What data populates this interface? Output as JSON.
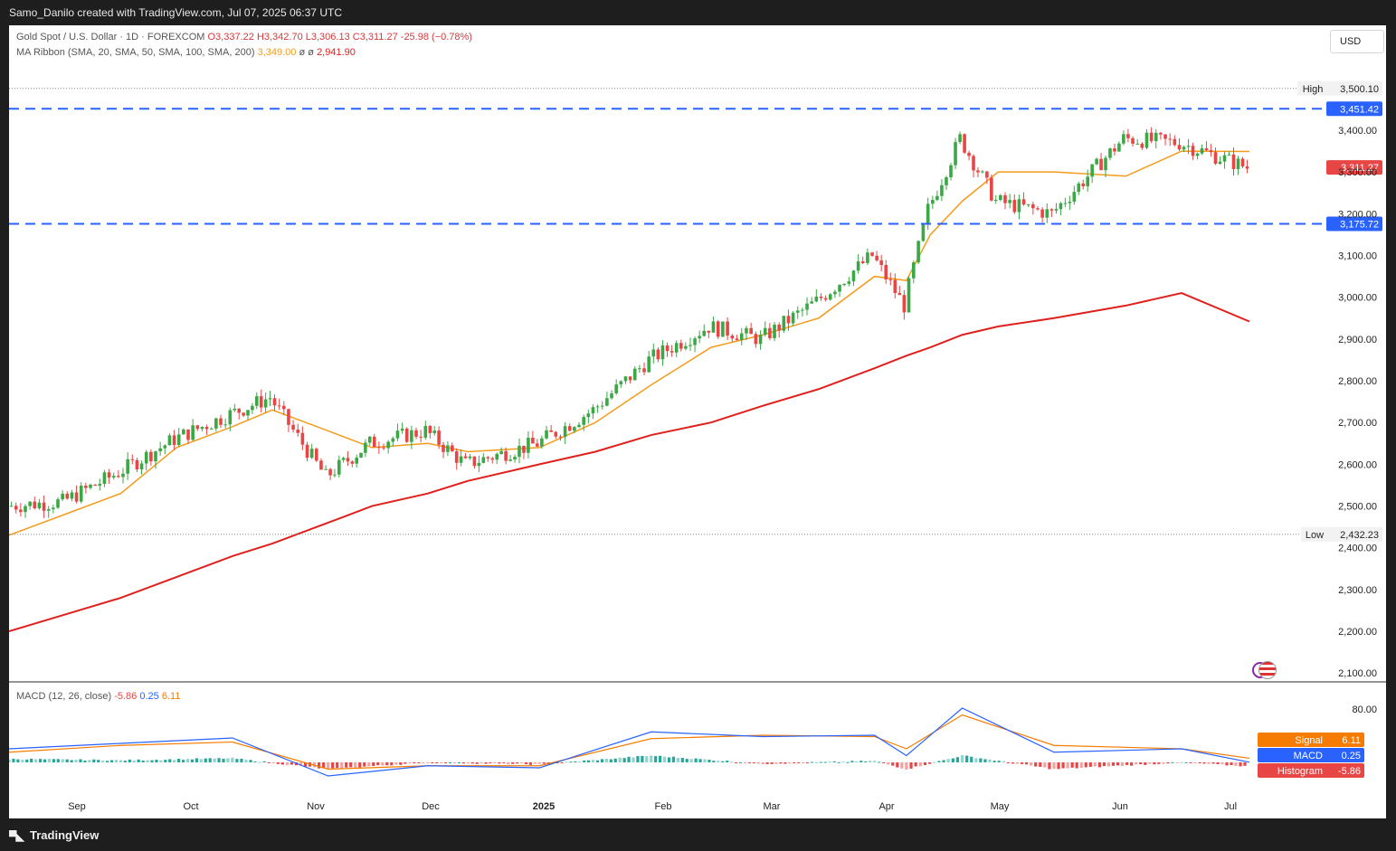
{
  "header": {
    "caption": "Samo_Danilo created with TradingView.com, Jul 07, 2025 06:37 UTC"
  },
  "footer": {
    "brand": "TradingView"
  },
  "currency_button": "USD",
  "legend": {
    "symbol": "Gold Spot / U.S. Dollar · 1D · FOREXCOM",
    "open": "O3,337.22",
    "high": "H3,342.70",
    "low": "L3,306.13",
    "close": "C3,311.27",
    "change": "-25.98 (−0.78%)",
    "ma_label": "MA Ribbon (SMA, 20, SMA, 50, SMA, 100, SMA, 200)",
    "ma_value1": "3,349.00",
    "ma_sep": "ø",
    "ma_sep2": "ø",
    "ma_value2": "2,941.90"
  },
  "macd_legend": {
    "label": "MACD (12, 26, close)",
    "hist": "-5.86",
    "macd": "0.25",
    "signal": "6.11"
  },
  "colors": {
    "up": "#26a69a",
    "up_candle": "#3aa845",
    "down": "#e84545",
    "sma20": "#f59b1c",
    "sma200": "#e0201c",
    "level": "#2962ff",
    "macd": "#2962ff",
    "signal": "#f57c00"
  },
  "price_axis": {
    "ticks": [
      "3,400.00",
      "3,300.00",
      "3,200.00",
      "3,100.00",
      "3,000.00",
      "2,900.00",
      "2,800.00",
      "2,700.00",
      "2,600.00",
      "2,500.00",
      "2,400.00",
      "2,300.00",
      "2,200.00",
      "2,100.00"
    ]
  },
  "macd_axis": {
    "ticks": [
      "80.00"
    ]
  },
  "time_axis": {
    "labels": [
      "Sep",
      "Oct",
      "Nov",
      "Dec",
      "2025",
      "Feb",
      "Mar",
      "Apr",
      "May",
      "Jun",
      "Jul"
    ]
  },
  "markers": {
    "high": {
      "label": "High",
      "value": "3,500.10"
    },
    "low": {
      "label": "Low",
      "value": "2,432.23"
    },
    "resistance": "3,451.42",
    "support": "3,175.72",
    "last": "3,311.27",
    "signal_tag": {
      "label": "Signal",
      "value": "6.11"
    },
    "macd_tag": {
      "label": "MACD",
      "value": "0.25"
    },
    "hist_tag": {
      "label": "Histogram",
      "value": "-5.86"
    }
  },
  "chart_data": [
    {
      "type": "candlestick",
      "title": "Gold Spot / U.S. Dollar · 1D · FOREXCOM",
      "ylim": [
        2080,
        3520
      ],
      "x": [
        "2024-08-26",
        "2024-09-09",
        "2024-09-23",
        "2024-10-07",
        "2024-10-21",
        "2024-10-31",
        "2024-11-14",
        "2024-11-25",
        "2024-12-09",
        "2024-12-19",
        "2025-01-06",
        "2025-01-20",
        "2025-02-03",
        "2025-02-18",
        "2025-03-03",
        "2025-03-17",
        "2025-03-31",
        "2025-04-08",
        "2025-04-14",
        "2025-04-22",
        "2025-05-01",
        "2025-05-15",
        "2025-06-02",
        "2025-06-16",
        "2025-07-03"
      ],
      "close": [
        2500,
        2510,
        2580,
        2660,
        2720,
        2760,
        2570,
        2650,
        2680,
        2600,
        2650,
        2730,
        2850,
        2930,
        2900,
        2990,
        3100,
        2980,
        3210,
        3380,
        3230,
        3200,
        3380,
        3370,
        3311
      ],
      "levels": {
        "high": 3500.1,
        "low": 2432.23,
        "resistance": 3451.42,
        "support": 3175.72
      },
      "series": [
        {
          "name": "SMA 20",
          "values": [
            2430,
            2480,
            2530,
            2640,
            2690,
            2730,
            2680,
            2640,
            2650,
            2630,
            2640,
            2700,
            2790,
            2880,
            2910,
            2950,
            3050,
            3040,
            3150,
            3230,
            3300,
            3300,
            3290,
            3350,
            3349
          ]
        },
        {
          "name": "SMA 200",
          "values": [
            2200,
            2240,
            2280,
            2330,
            2380,
            2410,
            2460,
            2500,
            2530,
            2560,
            2600,
            2630,
            2670,
            2700,
            2740,
            2780,
            2830,
            2860,
            2880,
            2910,
            2930,
            2950,
            2980,
            3010,
            2941.9
          ]
        }
      ]
    },
    {
      "type": "line",
      "title": "MACD (12, 26, close)",
      "x": [
        "2024-08-26",
        "2024-09-23",
        "2024-10-21",
        "2024-11-14",
        "2024-12-09",
        "2025-01-06",
        "2025-02-03",
        "2025-03-03",
        "2025-03-31",
        "2025-04-08",
        "2025-04-22",
        "2025-05-15",
        "2025-06-16",
        "2025-07-03"
      ],
      "series": [
        {
          "name": "MACD",
          "values": [
            20,
            28,
            36,
            -20,
            -5,
            -8,
            45,
            38,
            40,
            10,
            80,
            15,
            20,
            0.25
          ]
        },
        {
          "name": "Signal",
          "values": [
            15,
            25,
            30,
            -10,
            -5,
            -5,
            35,
            40,
            38,
            20,
            70,
            25,
            20,
            6.11
          ]
        },
        {
          "name": "Histogram",
          "values": [
            5,
            3,
            6,
            -10,
            0,
            -3,
            10,
            -2,
            2,
            -10,
            10,
            -10,
            0,
            -5.86
          ]
        }
      ]
    }
  ]
}
